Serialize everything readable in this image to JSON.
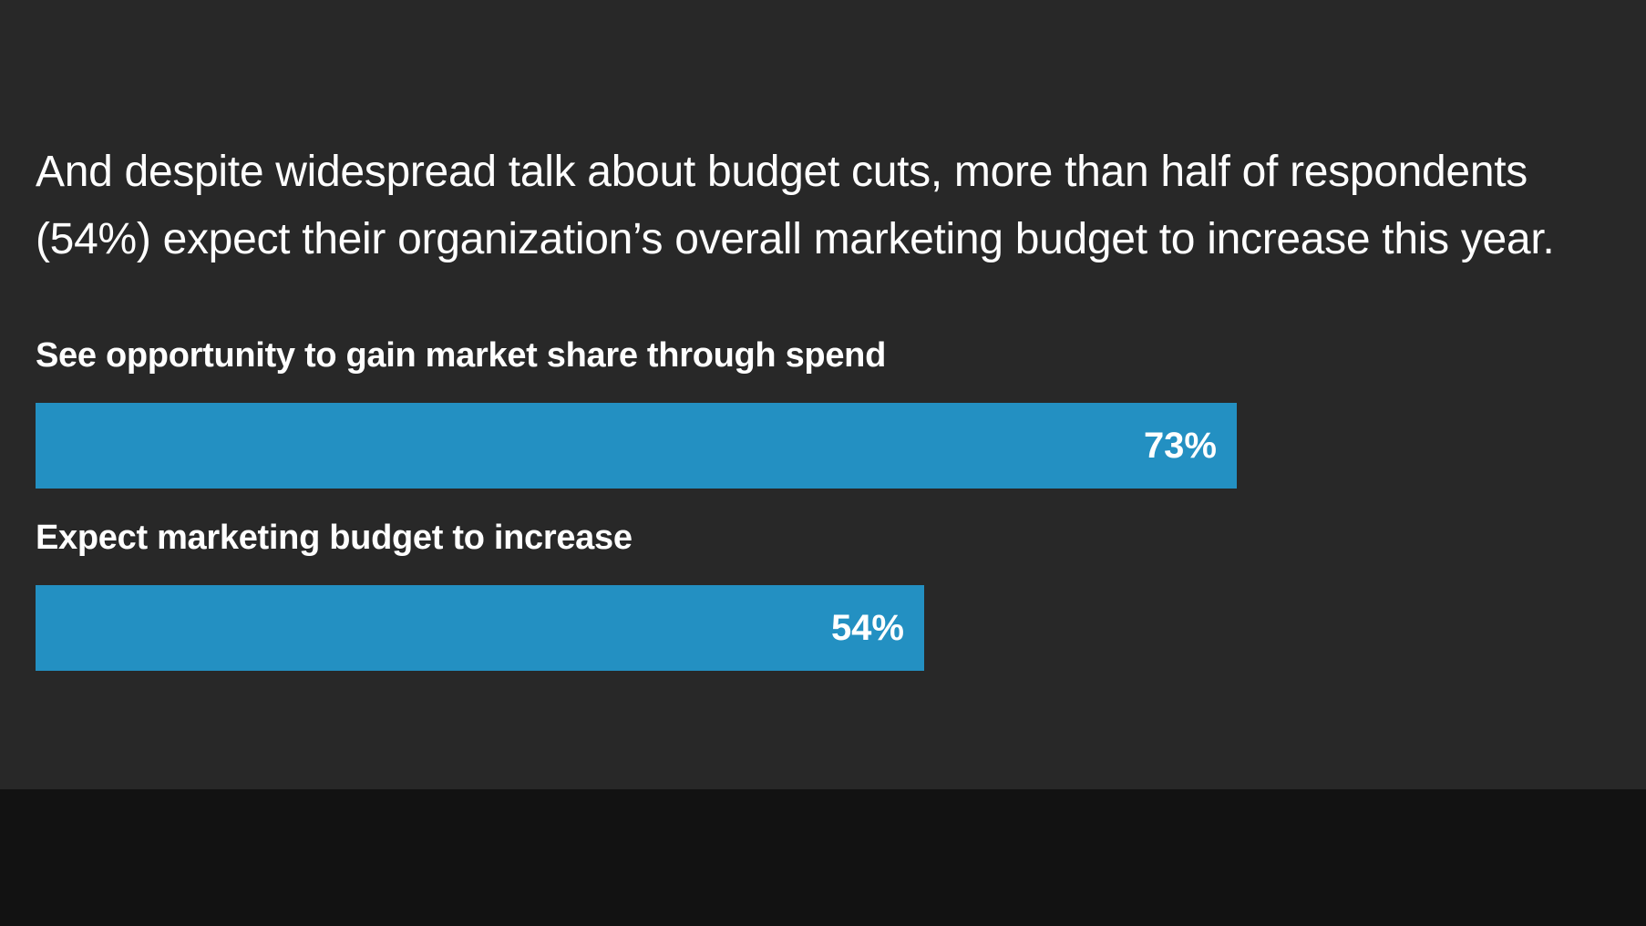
{
  "headline": "And despite widespread talk about budget cuts, more than half of respondents (54%) expect their organization’s overall marketing budget to increase this year.",
  "colors": {
    "background": "#282828",
    "footer": "#121212",
    "bar": "#2390c2",
    "text": "#ffffff"
  },
  "chart_data": {
    "type": "bar",
    "orientation": "horizontal",
    "title": "",
    "xlabel": "",
    "ylabel": "",
    "xlim": [
      0,
      100
    ],
    "grid": false,
    "categories": [
      "See opportunity to gain market share through spend",
      "Expect marketing budget to increase"
    ],
    "values": [
      73,
      54
    ],
    "value_labels": [
      "73%",
      "54%"
    ]
  }
}
